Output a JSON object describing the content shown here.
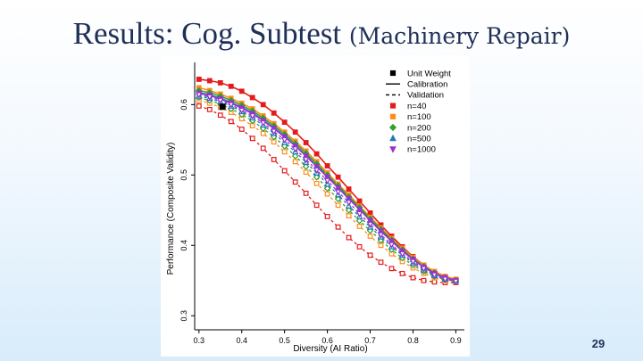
{
  "slide": {
    "title_main": "Results: Cog. Subtest",
    "title_paren": "(Machinery Repair)",
    "page_number": "29"
  },
  "chart_data": {
    "type": "line",
    "xlabel": "Diversity (AI Ratio)",
    "ylabel": "Performance (Composite Validity)",
    "xlim": [
      0.29,
      0.92
    ],
    "ylim": [
      0.28,
      0.66
    ],
    "x_ticks": [
      0.3,
      0.4,
      0.5,
      0.6,
      0.7,
      0.8,
      0.9
    ],
    "x_tick_labels": [
      "0.3",
      "0.4",
      "0.5",
      "0.6",
      "0.7",
      "0.8",
      "0.9"
    ],
    "y_ticks": [
      0.3,
      0.4,
      0.5,
      0.6
    ],
    "y_tick_labels": [
      "0.3",
      "0.4",
      "0.5",
      "0.6"
    ],
    "legend_position": "top-right",
    "legend": [
      {
        "label": "Unit Weight",
        "symbol": "square",
        "color": "#000000"
      },
      {
        "label": "Calibration",
        "symbol": "solid-line",
        "color": "#000000"
      },
      {
        "label": "Validation",
        "symbol": "dashed-line",
        "color": "#000000"
      },
      {
        "label": "n=40",
        "symbol": "square",
        "color": "#e41a1c"
      },
      {
        "label": "n=100",
        "symbol": "square",
        "color": "#ff8c1a"
      },
      {
        "label": "n=200",
        "symbol": "diamond",
        "color": "#33a02c"
      },
      {
        "label": "n=500",
        "symbol": "triangle",
        "color": "#1f78b4"
      },
      {
        "label": "n=1000",
        "symbol": "triangle-down",
        "color": "#9a32cd"
      }
    ],
    "unit_weight": {
      "x": 0.355,
      "y": 0.597
    },
    "x": [
      0.3,
      0.325,
      0.35,
      0.375,
      0.4,
      0.425,
      0.45,
      0.475,
      0.5,
      0.525,
      0.55,
      0.575,
      0.6,
      0.625,
      0.65,
      0.675,
      0.7,
      0.725,
      0.75,
      0.775,
      0.8,
      0.825,
      0.85,
      0.875,
      0.9
    ],
    "series": [
      {
        "name": "n=40 Calibration",
        "group": "n=40",
        "type": "calibration",
        "color": "#e41a1c",
        "marker": "square",
        "values": [
          0.636,
          0.634,
          0.631,
          0.626,
          0.619,
          0.61,
          0.6,
          0.588,
          0.575,
          0.561,
          0.546,
          0.53,
          0.513,
          0.497,
          0.48,
          0.463,
          0.446,
          0.429,
          0.413,
          0.398,
          0.384,
          0.372,
          0.362,
          0.355,
          0.351
        ]
      },
      {
        "name": "n=40 Validation",
        "group": "n=40",
        "type": "validation",
        "color": "#e41a1c",
        "marker": "square",
        "values": [
          0.598,
          0.593,
          0.585,
          0.576,
          0.565,
          0.552,
          0.538,
          0.522,
          0.506,
          0.49,
          0.474,
          0.457,
          0.441,
          0.426,
          0.411,
          0.398,
          0.386,
          0.376,
          0.367,
          0.36,
          0.354,
          0.35,
          0.348,
          0.347,
          0.347
        ]
      },
      {
        "name": "n=100 Calibration",
        "group": "n=100",
        "type": "calibration",
        "color": "#ff8c1a",
        "marker": "square",
        "values": [
          0.624,
          0.62,
          0.615,
          0.609,
          0.602,
          0.594,
          0.584,
          0.573,
          0.561,
          0.548,
          0.534,
          0.519,
          0.503,
          0.487,
          0.472,
          0.456,
          0.44,
          0.425,
          0.41,
          0.396,
          0.383,
          0.372,
          0.363,
          0.356,
          0.352
        ]
      },
      {
        "name": "n=100 Validation",
        "group": "n=100",
        "type": "validation",
        "color": "#ff8c1a",
        "marker": "square",
        "values": [
          0.606,
          0.602,
          0.596,
          0.589,
          0.58,
          0.57,
          0.559,
          0.547,
          0.533,
          0.519,
          0.504,
          0.488,
          0.473,
          0.457,
          0.442,
          0.427,
          0.413,
          0.4,
          0.388,
          0.377,
          0.368,
          0.36,
          0.354,
          0.35,
          0.348
        ]
      },
      {
        "name": "n=200 Calibration",
        "group": "n=200",
        "type": "calibration",
        "color": "#33a02c",
        "marker": "diamond",
        "values": [
          0.62,
          0.617,
          0.612,
          0.606,
          0.599,
          0.591,
          0.581,
          0.57,
          0.558,
          0.545,
          0.531,
          0.516,
          0.5,
          0.485,
          0.469,
          0.454,
          0.438,
          0.423,
          0.408,
          0.394,
          0.381,
          0.37,
          0.361,
          0.354,
          0.35
        ]
      },
      {
        "name": "n=200 Validation",
        "group": "n=200",
        "type": "validation",
        "color": "#33a02c",
        "marker": "diamond",
        "values": [
          0.61,
          0.606,
          0.601,
          0.594,
          0.586,
          0.577,
          0.566,
          0.554,
          0.541,
          0.527,
          0.512,
          0.497,
          0.481,
          0.466,
          0.45,
          0.435,
          0.421,
          0.407,
          0.394,
          0.382,
          0.372,
          0.363,
          0.356,
          0.351,
          0.349
        ]
      },
      {
        "name": "n=500 Calibration",
        "group": "n=500",
        "type": "calibration",
        "color": "#1f78b4",
        "marker": "triangle",
        "values": [
          0.617,
          0.614,
          0.609,
          0.603,
          0.596,
          0.588,
          0.578,
          0.567,
          0.555,
          0.542,
          0.528,
          0.513,
          0.498,
          0.482,
          0.467,
          0.451,
          0.436,
          0.421,
          0.406,
          0.393,
          0.38,
          0.369,
          0.36,
          0.354,
          0.35
        ]
      },
      {
        "name": "n=500 Validation",
        "group": "n=500",
        "type": "validation",
        "color": "#1f78b4",
        "marker": "triangle",
        "values": [
          0.612,
          0.609,
          0.604,
          0.598,
          0.59,
          0.581,
          0.571,
          0.559,
          0.546,
          0.533,
          0.518,
          0.503,
          0.487,
          0.472,
          0.456,
          0.441,
          0.426,
          0.412,
          0.398,
          0.386,
          0.375,
          0.365,
          0.357,
          0.352,
          0.349
        ]
      },
      {
        "name": "n=1000 Calibration",
        "group": "n=1000",
        "type": "calibration",
        "color": "#9a32cd",
        "marker": "triangle-down",
        "values": [
          0.616,
          0.613,
          0.608,
          0.602,
          0.595,
          0.587,
          0.577,
          0.566,
          0.554,
          0.541,
          0.527,
          0.512,
          0.497,
          0.482,
          0.466,
          0.451,
          0.435,
          0.42,
          0.406,
          0.392,
          0.38,
          0.369,
          0.36,
          0.354,
          0.35
        ]
      },
      {
        "name": "n=1000 Validation",
        "group": "n=1000",
        "type": "validation",
        "color": "#9a32cd",
        "marker": "triangle-down",
        "values": [
          0.614,
          0.611,
          0.606,
          0.6,
          0.592,
          0.584,
          0.574,
          0.562,
          0.55,
          0.537,
          0.522,
          0.507,
          0.492,
          0.476,
          0.461,
          0.445,
          0.43,
          0.415,
          0.401,
          0.388,
          0.377,
          0.367,
          0.358,
          0.352,
          0.349
        ]
      }
    ]
  }
}
